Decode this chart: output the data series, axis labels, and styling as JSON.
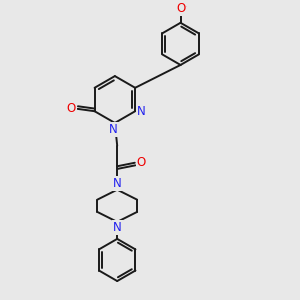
{
  "background_color": "#e8e8e8",
  "bond_color": "#1a1a1a",
  "nitrogen_color": "#2222ee",
  "oxygen_color": "#ee0000",
  "lw": 1.4,
  "dbo": 0.09,
  "figsize": [
    3.0,
    3.0
  ],
  "dpi": 100,
  "xlim": [
    0,
    10
  ],
  "ylim": [
    0,
    10
  ]
}
